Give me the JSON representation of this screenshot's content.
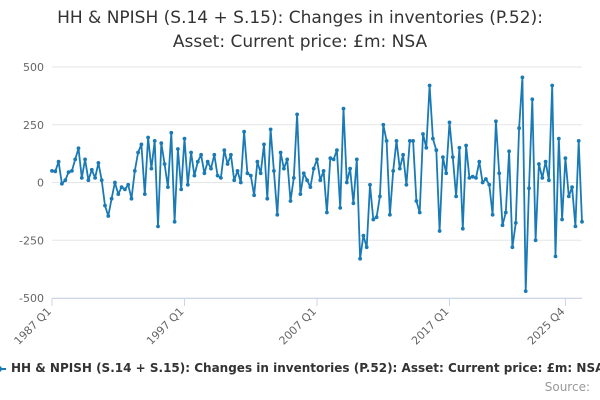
{
  "title_line1": "HH & NPISH (S.14 + S.15): Changes in inventories (P.52):",
  "title_line2": "Asset: Current price: £m: NSA",
  "legend_label": "HH & NPISH (S.14 + S.15): Changes in inventories (P.52): Asset: Current price: £m: NSA",
  "credits": "Source:",
  "colors": {
    "series": "#1a7ab5",
    "grid": "#e6e6e6",
    "axis": "#ccd6eb"
  },
  "chart_data": {
    "type": "line",
    "title": "HH & NPISH (S.14 + S.15): Changes in inventories (P.52): Asset: Current price: £m: NSA",
    "xlabel": "",
    "ylabel": "",
    "ylim": [
      -500,
      500
    ],
    "yticks": [
      500,
      250,
      0,
      -250,
      -500
    ],
    "xticks": [
      "1987 Q1",
      "1997 Q1",
      "2007 Q1",
      "2017 Q1",
      "2025 Q4"
    ],
    "x_start": "1987 Q1",
    "x_end": "2025 Q4",
    "grid": true,
    "legend": "bottom",
    "series": [
      {
        "name": "HH & NPISH (S.14 + S.15): Changes in inventories (P.52): Asset: Current price: £m: NSA",
        "values": [
          50,
          48,
          90,
          -5,
          10,
          45,
          50,
          100,
          148,
          20,
          100,
          10,
          55,
          20,
          85,
          10,
          -100,
          -145,
          -70,
          0,
          -50,
          -20,
          -30,
          -10,
          -70,
          50,
          130,
          165,
          -50,
          195,
          60,
          180,
          -190,
          170,
          80,
          -20,
          215,
          -170,
          145,
          -30,
          190,
          -10,
          130,
          30,
          90,
          120,
          40,
          90,
          60,
          120,
          30,
          20,
          140,
          80,
          120,
          10,
          50,
          0,
          220,
          40,
          30,
          -55,
          90,
          40,
          165,
          -70,
          230,
          50,
          -140,
          130,
          60,
          100,
          -80,
          20,
          295,
          -50,
          40,
          10,
          -20,
          60,
          100,
          10,
          50,
          -130,
          105,
          100,
          140,
          -110,
          320,
          0,
          60,
          -90,
          100,
          -330,
          -230,
          -280,
          -10,
          -160,
          -150,
          -60,
          250,
          180,
          -140,
          50,
          180,
          60,
          120,
          -10,
          180,
          180,
          -80,
          -130,
          210,
          150,
          420,
          190,
          140,
          -210,
          110,
          40,
          260,
          110,
          -60,
          150,
          -200,
          160,
          20,
          25,
          20,
          90,
          0,
          15,
          -10,
          -140,
          265,
          40,
          -185,
          -130,
          135,
          -280,
          -175,
          235,
          455,
          -470,
          -25,
          360,
          -250,
          80,
          20,
          90,
          10,
          420,
          -320,
          190,
          -160,
          105,
          -60,
          -20,
          -190,
          180,
          -170
        ]
      }
    ]
  }
}
